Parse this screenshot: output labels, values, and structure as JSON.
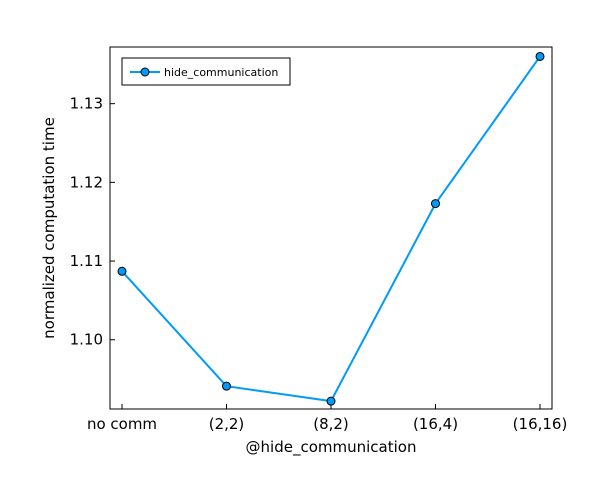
{
  "chart_data": {
    "type": "line",
    "categories": [
      "no comm",
      "(2,2)",
      "(8,2)",
      "(16,4)",
      "(16,16)"
    ],
    "series": [
      {
        "name": "hide_communication",
        "values": [
          1.1087,
          1.0941,
          1.0922,
          1.1173,
          1.136
        ],
        "color": "#009af9",
        "marker": "circle"
      }
    ],
    "xlabel": "@hide_communication",
    "ylabel": "normalized computation time",
    "ylim": [
      1.0912,
      1.1372
    ],
    "yticks": [
      1.1,
      1.11,
      1.12,
      1.13
    ],
    "ytick_labels": [
      "1.10",
      "1.11",
      "1.12",
      "1.13"
    ],
    "grid": false,
    "legend_position": "top-left"
  }
}
